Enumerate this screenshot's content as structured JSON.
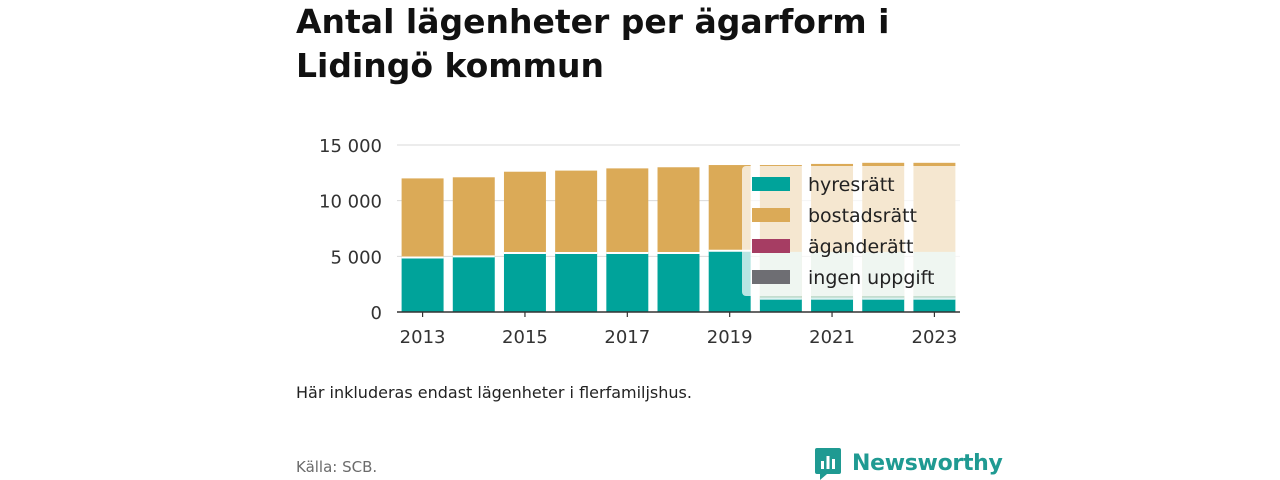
{
  "title": "Antal lägenheter per ägarform i Lidingö kommun",
  "note": "Här inkluderas endast lägenheter i flerfamiljshus.",
  "source": "Källa: SCB.",
  "logo": {
    "text": "Newsworthy",
    "icon": "bar-chart-speech-bubble-icon",
    "color": "#1f9a92"
  },
  "chart_data": {
    "type": "bar",
    "stacked": true,
    "categories": [
      "2013",
      "2014",
      "2015",
      "2016",
      "2017",
      "2018",
      "2019",
      "2020",
      "2021",
      "2022",
      "2023"
    ],
    "x_tick_labels": [
      "2013",
      "2015",
      "2017",
      "2019",
      "2021",
      "2023"
    ],
    "y_ticks": [
      0,
      5000,
      10000,
      15000
    ],
    "y_tick_labels": [
      "0",
      "5 000",
      "10 000",
      "15 000"
    ],
    "ylim": [
      0,
      15000
    ],
    "grid": true,
    "legend_position": "right-inside",
    "series": [
      {
        "name": "hyresrätt",
        "color": "#00a39a",
        "values": [
          4900,
          5000,
          5300,
          5300,
          5300,
          5300,
          5500,
          1200,
          1200,
          1200,
          1200
        ]
      },
      {
        "name": "bostadsrätt",
        "color": "#dbaa57",
        "values": [
          7100,
          7100,
          7300,
          7400,
          7600,
          7700,
          7700,
          12000,
          12100,
          12200,
          12200
        ]
      },
      {
        "name": "äganderätt",
        "color": "#a63d63",
        "values": [
          0,
          0,
          0,
          0,
          0,
          0,
          0,
          0,
          0,
          0,
          0
        ]
      },
      {
        "name": "ingen uppgift",
        "color": "#6e6e73",
        "values": [
          0,
          0,
          0,
          0,
          0,
          0,
          0,
          0,
          0,
          0,
          0
        ]
      }
    ],
    "faded_overlay_values": {
      "hyresrätt": [
        null,
        null,
        null,
        null,
        null,
        null,
        null,
        5400,
        5400,
        5400,
        5400
      ]
    }
  }
}
